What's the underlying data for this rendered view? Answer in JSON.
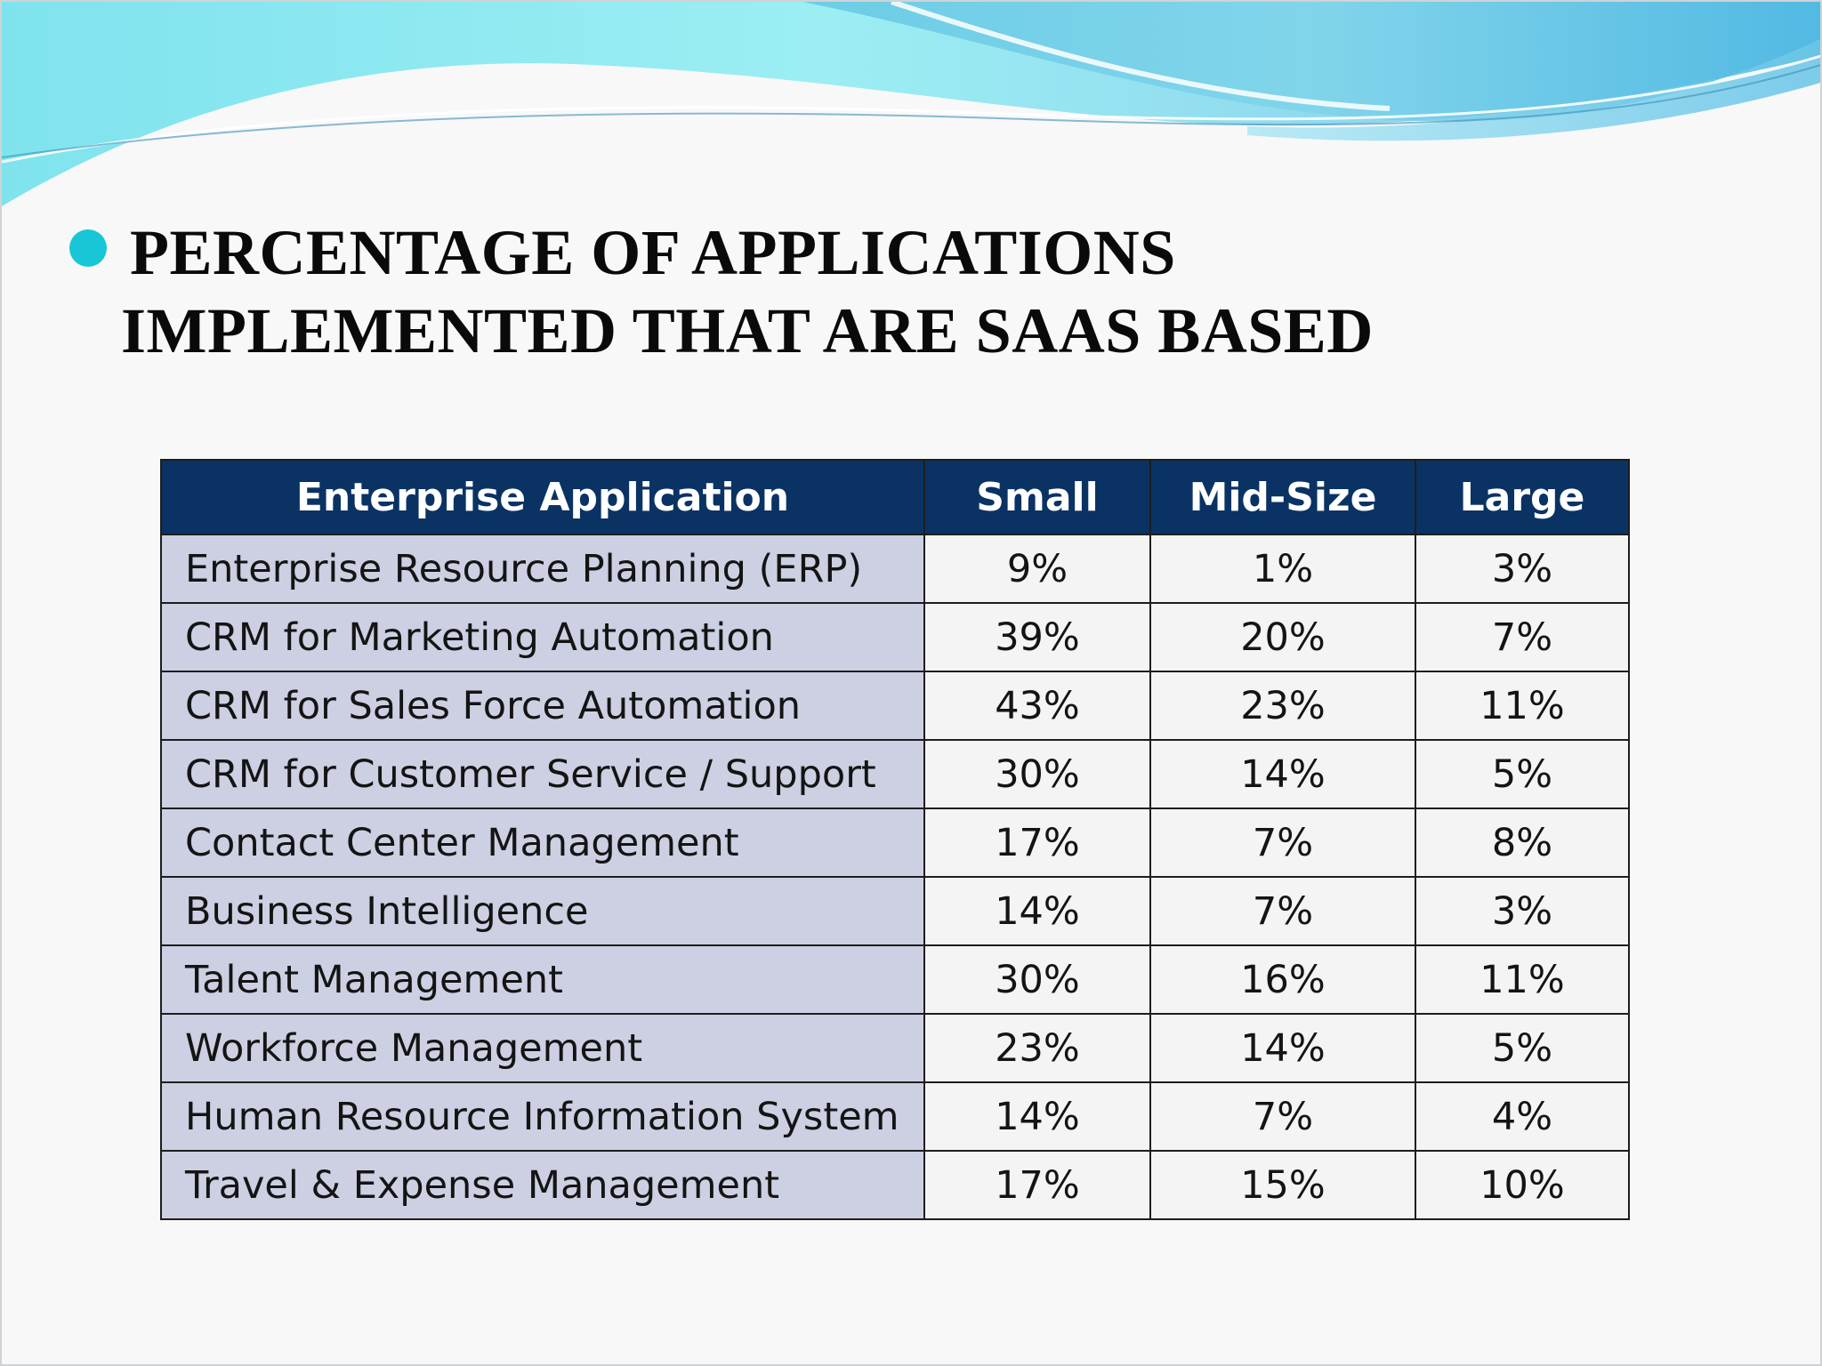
{
  "title": {
    "line1": "PERCENTAGE OF APPLICATIONS",
    "line2": "IMPLEMENTED THAT ARE SAAS BASED"
  },
  "table": {
    "headers": [
      "Enterprise Application",
      "Small",
      "Mid-Size",
      "Large"
    ],
    "rows": [
      {
        "app": "Enterprise Resource Planning (ERP)",
        "small": "9%",
        "mid": "1%",
        "large": "3%"
      },
      {
        "app": "CRM for Marketing Automation",
        "small": "39%",
        "mid": "20%",
        "large": "7%"
      },
      {
        "app": "CRM for Sales Force Automation",
        "small": "43%",
        "mid": "23%",
        "large": "11%"
      },
      {
        "app": "CRM for Customer Service / Support",
        "small": "30%",
        "mid": "14%",
        "large": "5%"
      },
      {
        "app": "Contact Center Management",
        "small": "17%",
        "mid": "7%",
        "large": "8%"
      },
      {
        "app": "Business Intelligence",
        "small": "14%",
        "mid": "7%",
        "large": "3%"
      },
      {
        "app": "Talent Management",
        "small": "30%",
        "mid": "16%",
        "large": "11%"
      },
      {
        "app": "Workforce Management",
        "small": "23%",
        "mid": "14%",
        "large": "5%"
      },
      {
        "app": "Human Resource Information System",
        "small": "14%",
        "mid": "7%",
        "large": "4%"
      },
      {
        "app": "Travel & Expense Management",
        "small": "17%",
        "mid": "15%",
        "large": "10%"
      }
    ]
  },
  "colors": {
    "header_bg": "#0a3364",
    "app_col_bg": "#cdd0e2",
    "value_bg": "#f4f4f4",
    "bullet": "#19c6d6",
    "wave_light": "#8ee6f0",
    "wave_mid": "#5fc8e8"
  }
}
